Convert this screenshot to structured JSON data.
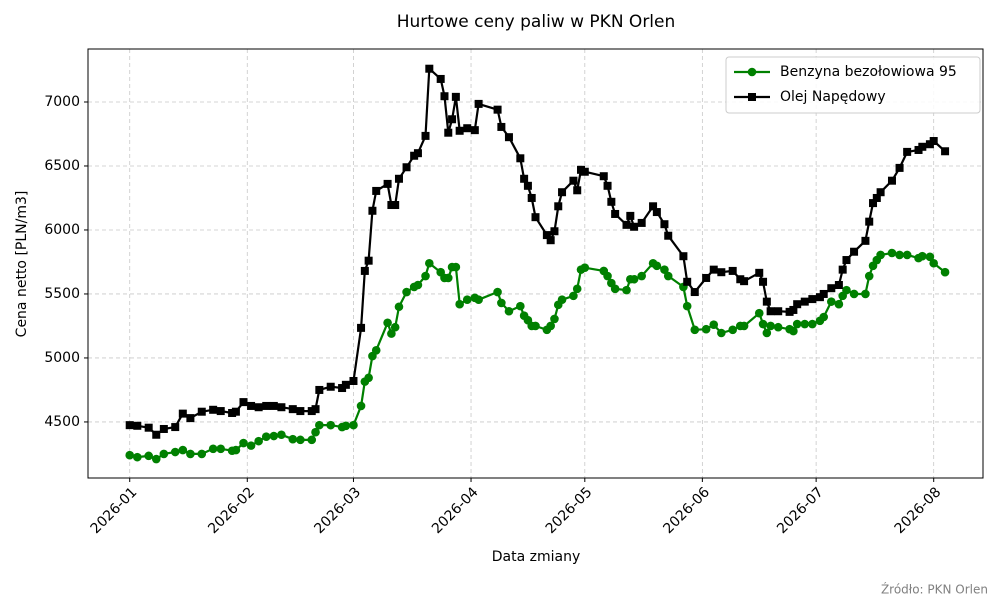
{
  "chart_data": {
    "type": "line",
    "title": "Hurtowe ceny paliw w PKN Orlen",
    "x_label": "Data zmiany",
    "y_label": "Cena netto [PLN/m3]",
    "source": "Źródło: PKN Orlen",
    "x": [
      "2026-01-01",
      "2026-01-03",
      "2026-01-06",
      "2026-01-08",
      "2026-01-10",
      "2026-01-13",
      "2026-01-15",
      "2026-01-17",
      "2026-01-20",
      "2026-01-23",
      "2026-01-25",
      "2026-01-28",
      "2026-01-29",
      "2026-01-31",
      "2026-02-02",
      "2026-02-04",
      "2026-02-06",
      "2026-02-08",
      "2026-02-10",
      "2026-02-13",
      "2026-02-15",
      "2026-02-18",
      "2026-02-19",
      "2026-02-20",
      "2026-02-23",
      "2026-02-26",
      "2026-02-27",
      "2026-03-01",
      "2026-03-03",
      "2026-03-04",
      "2026-03-05",
      "2026-03-06",
      "2026-03-07",
      "2026-03-10",
      "2026-03-11",
      "2026-03-12",
      "2026-03-13",
      "2026-03-15",
      "2026-03-17",
      "2026-03-18",
      "2026-03-20",
      "2026-03-21",
      "2026-03-24",
      "2026-03-25",
      "2026-03-26",
      "2026-03-27",
      "2026-03-28",
      "2026-03-29",
      "2026-03-31",
      "2026-04-02",
      "2026-04-03",
      "2026-04-08",
      "2026-04-09",
      "2026-04-11",
      "2026-04-14",
      "2026-04-15",
      "2026-04-16",
      "2026-04-17",
      "2026-04-18",
      "2026-04-21",
      "2026-04-22",
      "2026-04-23",
      "2026-04-24",
      "2026-04-25",
      "2026-04-28",
      "2026-04-29",
      "2026-04-30",
      "2026-05-01",
      "2026-05-06",
      "2026-05-07",
      "2026-05-08",
      "2026-05-09",
      "2026-05-12",
      "2026-05-13",
      "2026-05-14",
      "2026-05-16",
      "2026-05-19",
      "2026-05-20",
      "2026-05-22",
      "2026-05-23",
      "2026-05-27",
      "2026-05-28",
      "2026-05-30",
      "2026-06-02",
      "2026-06-04",
      "2026-06-06",
      "2026-06-09",
      "2026-06-11",
      "2026-06-12",
      "2026-06-16",
      "2026-06-17",
      "2026-06-18",
      "2026-06-19",
      "2026-06-21",
      "2026-06-24",
      "2026-06-25",
      "2026-06-26",
      "2026-06-28",
      "2026-06-30",
      "2026-07-02",
      "2026-07-03",
      "2026-07-05",
      "2026-07-07",
      "2026-07-08",
      "2026-07-09",
      "2026-07-11",
      "2026-07-14",
      "2026-07-15",
      "2026-07-16",
      "2026-07-17",
      "2026-07-18",
      "2026-07-21",
      "2026-07-23",
      "2026-07-25",
      "2026-07-28",
      "2026-07-29",
      "2026-07-31",
      "2026-08-01",
      "2026-08-04"
    ],
    "series": [
      {
        "name": "Benzyna bezołowiowa 95",
        "color": "#008000",
        "marker": "circle",
        "values": [
          4240,
          4225,
          4235,
          4210,
          4250,
          4265,
          4280,
          4250,
          4250,
          4290,
          4290,
          4275,
          4280,
          4335,
          4315,
          4350,
          4385,
          4390,
          4400,
          4365,
          4360,
          4360,
          4420,
          4475,
          4475,
          4460,
          4470,
          4475,
          4625,
          4815,
          4845,
          5015,
          5060,
          5275,
          5190,
          5240,
          5400,
          5515,
          5555,
          5570,
          5640,
          5740,
          5670,
          5625,
          5625,
          5710,
          5710,
          5420,
          5455,
          5470,
          5455,
          5515,
          5430,
          5365,
          5405,
          5330,
          5295,
          5250,
          5250,
          5220,
          5250,
          5305,
          5415,
          5455,
          5485,
          5540,
          5690,
          5705,
          5680,
          5640,
          5585,
          5540,
          5530,
          5615,
          5615,
          5640,
          5740,
          5720,
          5690,
          5640,
          5555,
          5405,
          5220,
          5225,
          5260,
          5195,
          5220,
          5250,
          5250,
          5350,
          5265,
          5195,
          5250,
          5240,
          5225,
          5210,
          5265,
          5265,
          5265,
          5290,
          5320,
          5440,
          5420,
          5485,
          5530,
          5500,
          5500,
          5640,
          5720,
          5765,
          5805,
          5820,
          5805,
          5805,
          5780,
          5795,
          5790,
          5740,
          5670
        ]
      },
      {
        "name": "Olej Napędowy",
        "color": "#000000",
        "marker": "square",
        "values": [
          4475,
          4470,
          4455,
          4400,
          4445,
          4460,
          4565,
          4530,
          4580,
          4595,
          4585,
          4570,
          4580,
          4655,
          4625,
          4615,
          4625,
          4625,
          4615,
          4600,
          4585,
          4585,
          4600,
          4750,
          4775,
          4765,
          4790,
          4820,
          5235,
          5680,
          5760,
          6150,
          6305,
          6360,
          6195,
          6195,
          6400,
          6490,
          6580,
          6600,
          6735,
          7260,
          7180,
          7045,
          6760,
          6865,
          7040,
          6775,
          6795,
          6780,
          6985,
          6940,
          6805,
          6725,
          6560,
          6400,
          6345,
          6250,
          6100,
          5960,
          5920,
          5990,
          6185,
          6295,
          6385,
          6310,
          6470,
          6455,
          6420,
          6345,
          6220,
          6125,
          6040,
          6110,
          6025,
          6055,
          6185,
          6140,
          6045,
          5955,
          5795,
          5595,
          5515,
          5625,
          5690,
          5670,
          5680,
          5615,
          5600,
          5665,
          5595,
          5440,
          5365,
          5365,
          5360,
          5375,
          5420,
          5440,
          5460,
          5475,
          5500,
          5545,
          5570,
          5690,
          5765,
          5830,
          5915,
          6065,
          6210,
          6250,
          6295,
          6385,
          6485,
          6610,
          6625,
          6650,
          6670,
          6695,
          6615
        ]
      }
    ],
    "xlim": [
      "2025-12-21",
      "2026-08-14"
    ],
    "xticks": [
      "2026-01",
      "2026-02",
      "2026-03",
      "2026-04",
      "2026-05",
      "2026-06",
      "2026-07",
      "2026-08"
    ],
    "ylim": [
      4062,
      7414
    ],
    "yticks": [
      4500,
      5000,
      5500,
      6000,
      6500,
      7000
    ],
    "grid": true,
    "legend": "upper right"
  }
}
